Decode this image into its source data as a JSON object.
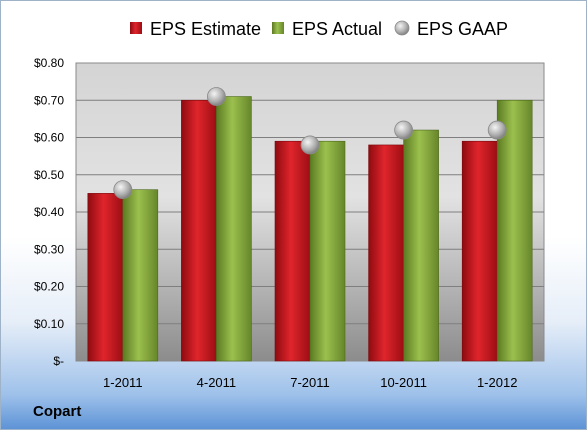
{
  "company": "Copart",
  "chart_data": {
    "type": "bar",
    "title": "",
    "xlabel": "",
    "ylabel": "",
    "categories": [
      "1-2011",
      "4-2011",
      "7-2011",
      "10-2011",
      "1-2012"
    ],
    "series": [
      {
        "name": "EPS Estimate",
        "kind": "bar",
        "color": "#c8141c",
        "values": [
          0.45,
          0.7,
          0.59,
          0.58,
          0.59
        ]
      },
      {
        "name": "EPS Actual",
        "kind": "bar",
        "color": "#7fa038",
        "values": [
          0.46,
          0.71,
          0.59,
          0.62,
          0.7
        ]
      },
      {
        "name": "EPS GAAP",
        "kind": "marker",
        "color": "#a8a8a8",
        "values": [
          0.46,
          0.71,
          0.58,
          0.62,
          0.62
        ]
      }
    ],
    "ylim": [
      0,
      0.8
    ],
    "yticks": [
      0,
      0.1,
      0.2,
      0.3,
      0.4,
      0.5,
      0.6,
      0.7,
      0.8
    ],
    "ytick_labels": [
      "$-",
      "$0.10",
      "$0.20",
      "$0.30",
      "$0.40",
      "$0.50",
      "$0.60",
      "$0.70",
      "$0.80"
    ],
    "grid": true,
    "legend": "top"
  }
}
